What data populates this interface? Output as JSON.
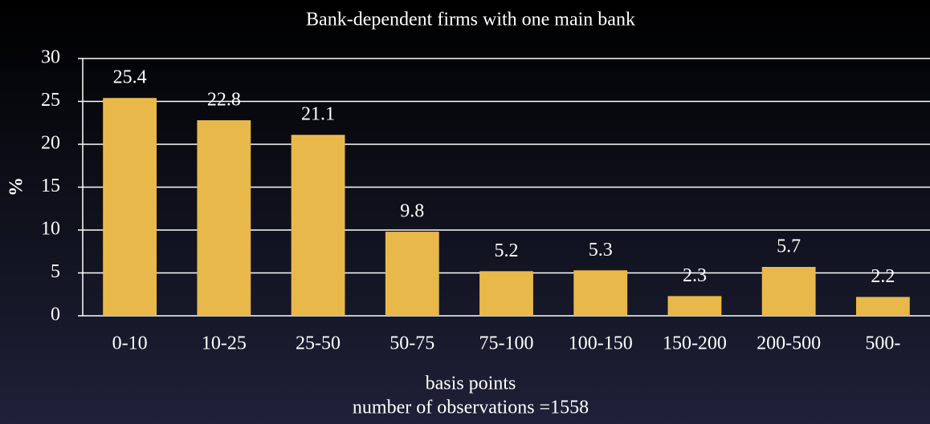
{
  "chart_data": {
    "type": "bar",
    "title": "Bank-dependent firms with one main bank",
    "categories": [
      "0-10",
      "10-25",
      "25-50",
      "50-75",
      "75-100",
      "100-150",
      "150-200",
      "200-500",
      "500-"
    ],
    "values": [
      25.4,
      22.8,
      21.1,
      9.8,
      5.2,
      5.3,
      2.3,
      5.7,
      2.2
    ],
    "value_labels": [
      "25.4",
      "22.8",
      "21.1",
      "9.8",
      "5.2",
      "5.3",
      "2.3",
      "5.7",
      "2.2"
    ],
    "color": "#e8b94a",
    "ylabel": "%",
    "xlabel": "basis points",
    "note": "number of observations =1558",
    "ylim": [
      0,
      30
    ],
    "yticks": [
      0,
      5,
      10,
      15,
      20,
      25,
      30
    ],
    "grid": true
  }
}
